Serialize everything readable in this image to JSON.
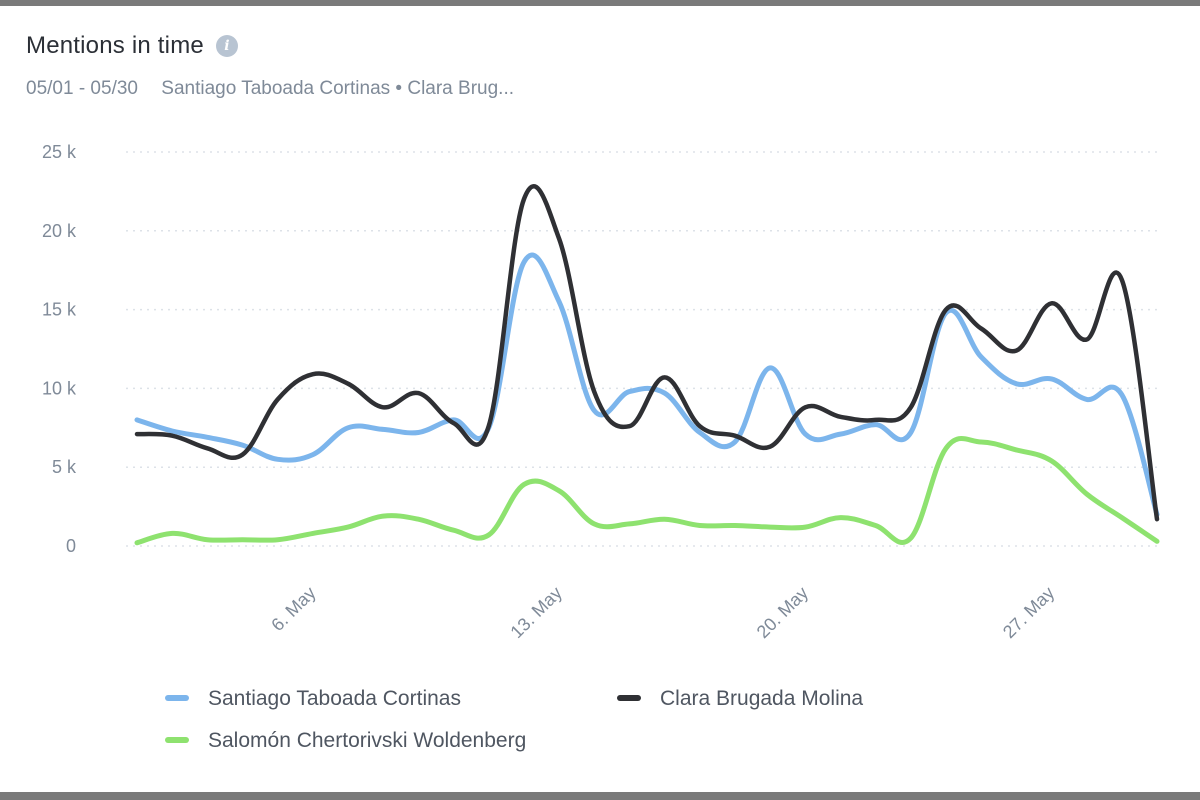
{
  "widget": {
    "title": "Mentions in time",
    "info_icon": "info-icon",
    "date_range": "05/01 - 05/30",
    "candidates_summary": "Santiago Taboada Cortinas • Clara Brug..."
  },
  "chart_data": {
    "type": "line",
    "title": "Mentions in time",
    "xlabel": "",
    "ylabel": "",
    "x": [
      1,
      2,
      3,
      4,
      5,
      6,
      7,
      8,
      9,
      10,
      11,
      12,
      13,
      14,
      15,
      16,
      17,
      18,
      19,
      20,
      21,
      22,
      23,
      24,
      25,
      26,
      27,
      28,
      29,
      30
    ],
    "x_tick_values": [
      6,
      13,
      20,
      27
    ],
    "x_tick_labels": [
      "6. May",
      "13. May",
      "20. May",
      "27. May"
    ],
    "ylim": [
      0,
      25000
    ],
    "y_ticks": [
      0,
      5000,
      10000,
      15000,
      20000,
      25000
    ],
    "y_tick_labels": [
      "0",
      "5 k",
      "10 k",
      "15 k",
      "20 k",
      "25 k"
    ],
    "grid": true,
    "legend_position": "bottom",
    "series": [
      {
        "name": "Santiago Taboada Cortinas",
        "color": "#7cb5ec",
        "values": [
          8000,
          7300,
          6900,
          6400,
          5500,
          5800,
          7500,
          7400,
          7200,
          8000,
          7500,
          18000,
          15500,
          8600,
          9800,
          9700,
          7200,
          6600,
          11300,
          7100,
          7100,
          7700,
          7200,
          14800,
          12000,
          10300,
          10600,
          9300,
          9600,
          2000
        ]
      },
      {
        "name": "Clara Brugada Molina",
        "color": "#2f3034",
        "values": [
          7100,
          7000,
          6200,
          5800,
          9300,
          10900,
          10300,
          8800,
          9700,
          7800,
          7600,
          22000,
          19500,
          9800,
          7600,
          10700,
          7600,
          7000,
          6300,
          8800,
          8200,
          8000,
          8800,
          15000,
          13800,
          12400,
          15400,
          13100,
          16900,
          1700
        ]
      },
      {
        "name": "Salomón Chertorivski Woldenberg",
        "color": "#8ee26f",
        "values": [
          200,
          800,
          400,
          400,
          400,
          800,
          1200,
          1900,
          1700,
          1000,
          700,
          3900,
          3500,
          1400,
          1400,
          1700,
          1300,
          1300,
          1200,
          1200,
          1800,
          1300,
          500,
          6200,
          6600,
          6100,
          5400,
          3300,
          1800,
          300
        ]
      }
    ]
  }
}
